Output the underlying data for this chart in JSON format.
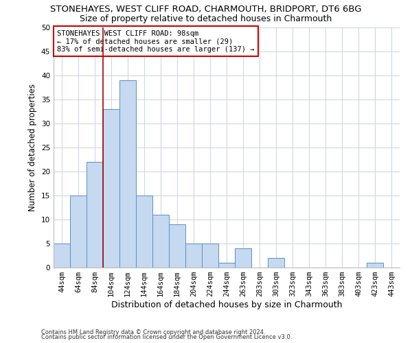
{
  "title1": "STONEHAYES, WEST CLIFF ROAD, CHARMOUTH, BRIDPORT, DT6 6BG",
  "title2": "Size of property relative to detached houses in Charmouth",
  "xlabel": "Distribution of detached houses by size in Charmouth",
  "ylabel": "Number of detached properties",
  "footnote1": "Contains HM Land Registry data © Crown copyright and database right 2024.",
  "footnote2": "Contains public sector information licensed under the Open Government Licence v3.0.",
  "categories": [
    "44sqm",
    "64sqm",
    "84sqm",
    "104sqm",
    "124sqm",
    "144sqm",
    "164sqm",
    "184sqm",
    "204sqm",
    "224sqm",
    "244sqm",
    "263sqm",
    "283sqm",
    "303sqm",
    "323sqm",
    "343sqm",
    "363sqm",
    "383sqm",
    "403sqm",
    "423sqm",
    "443sqm"
  ],
  "values": [
    5,
    15,
    22,
    33,
    39,
    15,
    11,
    9,
    5,
    5,
    1,
    4,
    0,
    2,
    0,
    0,
    0,
    0,
    0,
    1,
    0
  ],
  "bar_color": "#c5d9f0",
  "bar_edge_color": "#5a8fc4",
  "vline_x": 2.5,
  "vline_color": "#aa0000",
  "annotation_text": "STONEHAYES WEST CLIFF ROAD: 98sqm\n← 17% of detached houses are smaller (29)\n83% of semi-detached houses are larger (137) →",
  "annotation_box_color": "#ffffff",
  "annotation_box_edge_color": "#cc0000",
  "ylim": [
    0,
    50
  ],
  "yticks": [
    0,
    5,
    10,
    15,
    20,
    25,
    30,
    35,
    40,
    45,
    50
  ],
  "bg_color": "#ffffff",
  "grid_color": "#cdd6e8",
  "title1_fontsize": 9.5,
  "title2_fontsize": 9,
  "xlabel_fontsize": 9,
  "ylabel_fontsize": 8.5,
  "footnote_fontsize": 6.0,
  "tick_fontsize": 7.5,
  "annot_fontsize": 7.5
}
